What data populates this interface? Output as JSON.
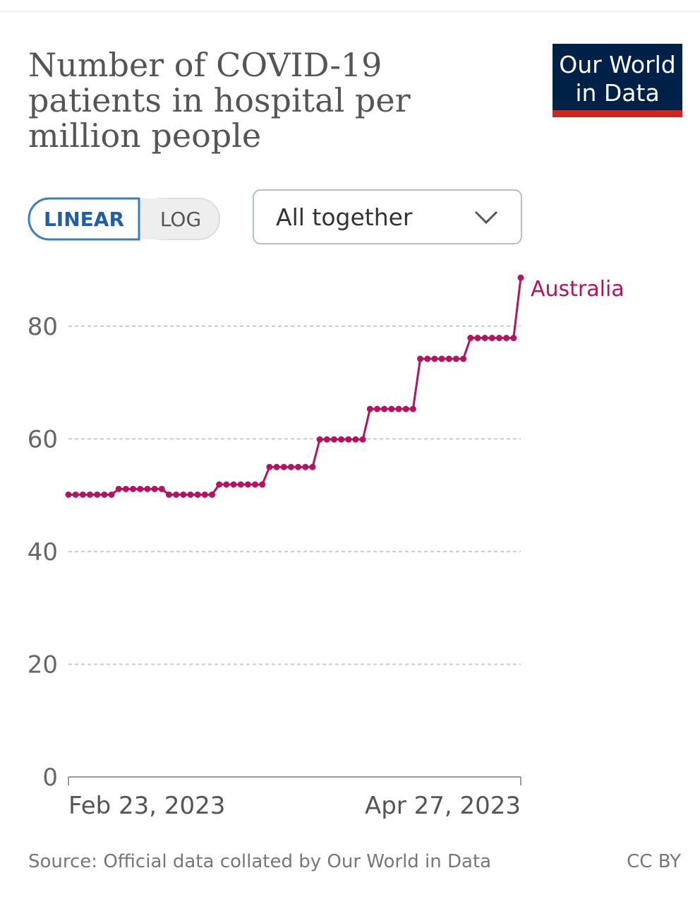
{
  "header": {
    "title": [
      "Number of COVID-19",
      "patients in hospital per",
      "million people"
    ],
    "logo": [
      "Our World",
      "in Data"
    ]
  },
  "controls": {
    "scale_toggle": [
      "LINEAR",
      "LOG"
    ],
    "active": "LINEAR",
    "dropdown": "All together"
  },
  "chart_data": {
    "type": "line",
    "x": [
      "Feb 23, 2023",
      "Feb 24, 2023",
      "Feb 25, 2023",
      "Feb 26, 2023",
      "Feb 27, 2023",
      "Feb 28, 2023",
      "Mar 1, 2023",
      "Mar 2, 2023",
      "Mar 3, 2023",
      "Mar 4, 2023",
      "Mar 5, 2023",
      "Mar 6, 2023",
      "Mar 7, 2023",
      "Mar 8, 2023",
      "Mar 9, 2023",
      "Mar 10, 2023",
      "Mar 11, 2023",
      "Mar 12, 2023",
      "Mar 13, 2023",
      "Mar 14, 2023",
      "Mar 15, 2023",
      "Mar 16, 2023",
      "Mar 17, 2023",
      "Mar 18, 2023",
      "Mar 19, 2023",
      "Mar 20, 2023",
      "Mar 21, 2023",
      "Mar 22, 2023",
      "Mar 23, 2023",
      "Mar 24, 2023",
      "Mar 25, 2023",
      "Mar 26, 2023",
      "Mar 27, 2023",
      "Mar 28, 2023",
      "Mar 29, 2023",
      "Mar 30, 2023",
      "Mar 31, 2023",
      "Apr 1, 2023",
      "Apr 2, 2023",
      "Apr 3, 2023",
      "Apr 4, 2023",
      "Apr 5, 2023",
      "Apr 6, 2023",
      "Apr 7, 2023",
      "Apr 8, 2023",
      "Apr 9, 2023",
      "Apr 10, 2023",
      "Apr 11, 2023",
      "Apr 12, 2023",
      "Apr 13, 2023",
      "Apr 14, 2023",
      "Apr 15, 2023",
      "Apr 16, 2023",
      "Apr 17, 2023",
      "Apr 18, 2023",
      "Apr 19, 2023",
      "Apr 20, 2023",
      "Apr 21, 2023",
      "Apr 22, 2023",
      "Apr 23, 2023",
      "Apr 24, 2023",
      "Apr 25, 2023",
      "Apr 26, 2023",
      "Apr 27, 2023"
    ],
    "series": [
      {
        "name": "Australia",
        "color": "#b5135f",
        "values": [
          50.1,
          50.1,
          50.1,
          50.1,
          50.1,
          50.1,
          50.1,
          51.1,
          51.1,
          51.1,
          51.1,
          51.1,
          51.1,
          51.1,
          50.1,
          50.1,
          50.1,
          50.1,
          50.1,
          50.1,
          50.1,
          51.9,
          51.9,
          51.9,
          51.9,
          51.9,
          51.9,
          51.9,
          55,
          55,
          55,
          55,
          55,
          55,
          55,
          59.9,
          59.9,
          59.9,
          59.9,
          59.9,
          59.9,
          59.9,
          65.3,
          65.3,
          65.3,
          65.3,
          65.3,
          65.3,
          65.3,
          74.2,
          74.2,
          74.2,
          74.2,
          74.2,
          74.2,
          74.2,
          77.9,
          77.9,
          77.9,
          77.9,
          77.9,
          77.9,
          77.9,
          88.6
        ]
      }
    ],
    "xlim": [
      "Feb 23, 2023",
      "Apr 27, 2023"
    ],
    "xticks": [
      "Feb 23, 2023",
      "Apr 27, 2023"
    ],
    "ylim": [
      0,
      90
    ],
    "yticks": [
      0,
      20,
      40,
      60,
      80
    ],
    "grid": true
  },
  "footer": {
    "source": "Source: Official data collated by Our World in Data",
    "license": "CC BY"
  }
}
